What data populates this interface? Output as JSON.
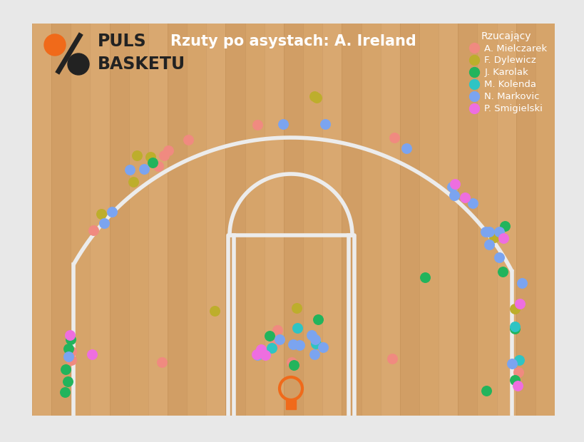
{
  "chart_data": {
    "type": "scatter",
    "title": "Rzuty po asystach: A. Ireland",
    "logo": [
      "PULS",
      "BASKETU"
    ],
    "legend_title": "Rzucający",
    "legend": "upper right",
    "tick_labels": false,
    "grid": false,
    "xlim": [
      45,
      778
    ],
    "ylim": [
      583,
      33
    ],
    "series": [
      {
        "name": "A. Mielczarek",
        "color": "#F08A80",
        "marker": "circle",
        "x": [
          361,
          553,
          264,
          236,
          230,
          222,
          131,
          550,
          227,
          100,
          100,
          389,
          385,
          727,
          409
        ],
        "y": [
          175,
          193,
          196,
          211,
          218,
          233,
          323,
          503,
          508,
          493,
          505,
          463,
          483,
          522,
          508
        ]
      },
      {
        "name": "F. Dylewicz",
        "color": "#BDAE2C",
        "marker": "circle",
        "x": [
          441,
          444,
          192,
          211,
          187,
          142,
          301,
          416,
          722,
          693
        ],
        "y": [
          135,
          137,
          218,
          220,
          255,
          300,
          436,
          432,
          433,
          333
        ]
      },
      {
        "name": "J. Karolak",
        "color": "#22B45C",
        "marker": "circle",
        "x": [
          214,
          708,
          705,
          596,
          446,
          378,
          412,
          99,
          96,
          92,
          95,
          91,
          682,
          722,
          722
        ],
        "y": [
          228,
          317,
          381,
          389,
          448,
          471,
          512,
          476,
          489,
          518,
          535,
          550,
          548,
          461,
          533
        ]
      },
      {
        "name": "M. Kolenda",
        "color": "#2EC4C4",
        "marker": "circle",
        "x": [
          417,
          381,
          443,
          722,
          728
        ],
        "y": [
          460,
          488,
          482,
          458,
          505
        ]
      },
      {
        "name": "N. Markovic",
        "color": "#7BA4F0",
        "marker": "circle",
        "x": [
          397,
          456,
          570,
          182,
          202,
          157,
          146,
          634,
          637,
          663,
          681,
          686,
          700,
          686,
          700,
          732,
          392,
          411,
          420,
          437,
          442,
          453,
          361,
          441,
          718,
          96
        ],
        "y": [
          174,
          174,
          208,
          238,
          237,
          297,
          313,
          262,
          274,
          285,
          325,
          325,
          325,
          343,
          361,
          397,
          476,
          483,
          484,
          470,
          476,
          487,
          498,
          497,
          510,
          500
        ]
      },
      {
        "name": "P. Smigielski",
        "color": "#EE6EE0",
        "marker": "circle",
        "x": [
          638,
          652,
          706,
          729,
          98,
          129,
          366,
          372,
          726,
          360
        ],
        "y": [
          258,
          277,
          334,
          426,
          470,
          497,
          490,
          498,
          541,
          497
        ]
      }
    ]
  }
}
